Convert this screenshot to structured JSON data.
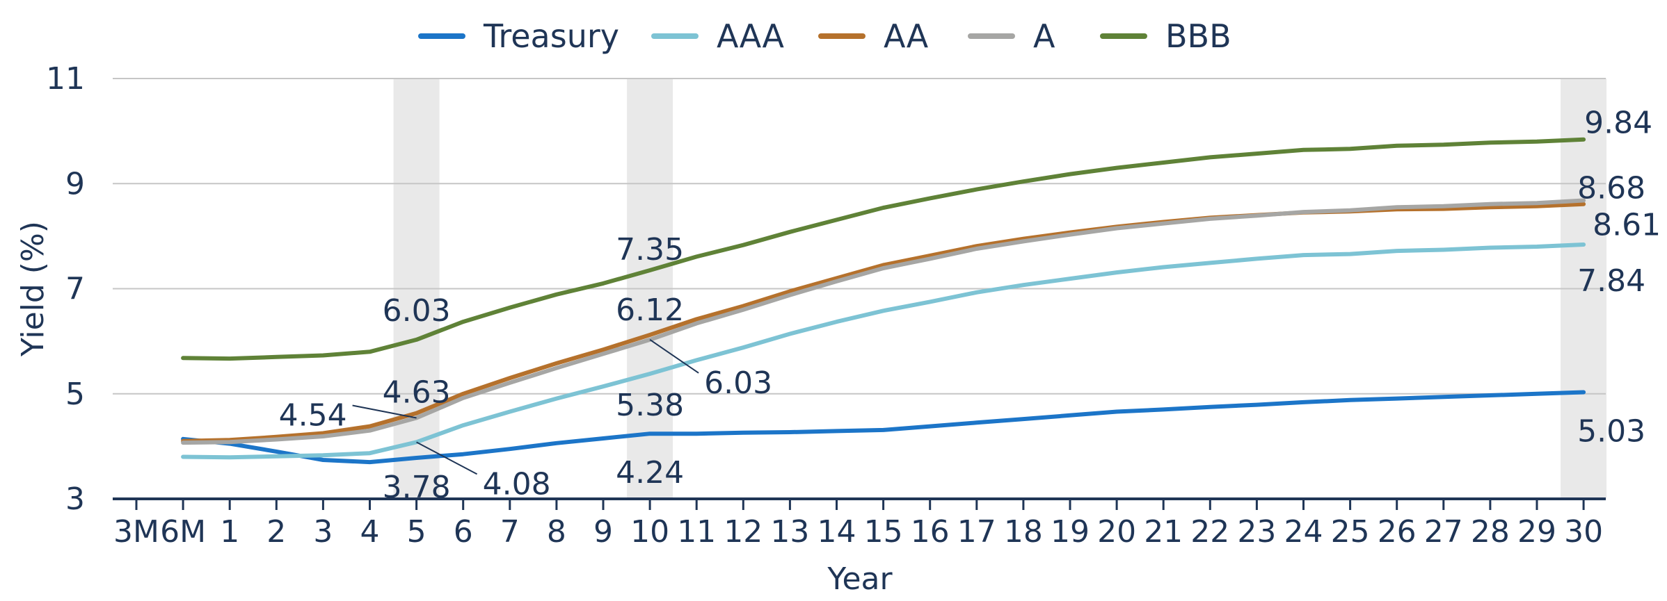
{
  "chart_data": {
    "type": "line",
    "title": "",
    "xlabel": "Year",
    "ylabel": "Yield (%)",
    "ylim": [
      3,
      11
    ],
    "yticks": [
      3,
      5,
      7,
      9,
      11
    ],
    "grid": "horizontal",
    "legend": "top",
    "categories": [
      "3M",
      "6M",
      "1",
      "2",
      "3",
      "4",
      "5",
      "6",
      "7",
      "8",
      "9",
      "10",
      "11",
      "12",
      "13",
      "14",
      "15",
      "16",
      "17",
      "18",
      "19",
      "20",
      "21",
      "22",
      "23",
      "24",
      "25",
      "26",
      "27",
      "28",
      "29",
      "30"
    ],
    "highlight_categories": [
      "5",
      "10",
      "30"
    ],
    "series": [
      {
        "name": "Treasury",
        "color": "#1c75c8",
        "values": [
          null,
          4.14,
          4.05,
          3.9,
          3.74,
          3.7,
          3.78,
          3.85,
          3.95,
          4.06,
          4.15,
          4.24,
          4.24,
          4.26,
          4.27,
          4.29,
          4.31,
          4.38,
          4.45,
          4.52,
          4.59,
          4.66,
          4.7,
          4.75,
          4.79,
          4.84,
          4.88,
          4.91,
          4.94,
          4.97,
          5.0,
          5.03
        ]
      },
      {
        "name": "AAA",
        "color": "#7dc3d4",
        "values": [
          null,
          3.8,
          3.79,
          3.81,
          3.83,
          3.87,
          4.08,
          4.4,
          4.66,
          4.91,
          5.14,
          5.38,
          5.64,
          5.88,
          6.14,
          6.37,
          6.58,
          6.75,
          6.93,
          7.07,
          7.19,
          7.31,
          7.41,
          7.49,
          7.57,
          7.64,
          7.66,
          7.72,
          7.74,
          7.78,
          7.8,
          7.84
        ]
      },
      {
        "name": "AA",
        "color": "#b5712c",
        "values": [
          null,
          4.1,
          4.12,
          4.18,
          4.25,
          4.38,
          4.63,
          5.0,
          5.3,
          5.58,
          5.84,
          6.12,
          6.42,
          6.67,
          6.95,
          7.2,
          7.45,
          7.63,
          7.81,
          7.95,
          8.07,
          8.18,
          8.27,
          8.35,
          8.4,
          8.45,
          8.47,
          8.51,
          8.52,
          8.55,
          8.57,
          8.61
        ]
      },
      {
        "name": "A",
        "color": "#a6a6a4",
        "values": [
          null,
          4.07,
          4.08,
          4.13,
          4.19,
          4.3,
          4.54,
          4.92,
          5.21,
          5.49,
          5.76,
          6.03,
          6.34,
          6.6,
          6.88,
          7.14,
          7.39,
          7.57,
          7.76,
          7.9,
          8.03,
          8.15,
          8.24,
          8.33,
          8.39,
          8.46,
          8.49,
          8.55,
          8.57,
          8.61,
          8.63,
          8.68
        ]
      },
      {
        "name": "BBB",
        "color": "#5f8237",
        "values": [
          null,
          5.68,
          5.67,
          5.7,
          5.73,
          5.8,
          6.03,
          6.37,
          6.64,
          6.89,
          7.1,
          7.35,
          7.61,
          7.83,
          8.08,
          8.31,
          8.54,
          8.72,
          8.89,
          9.04,
          9.18,
          9.3,
          9.4,
          9.5,
          9.57,
          9.64,
          9.66,
          9.72,
          9.74,
          9.78,
          9.8,
          9.84
        ]
      }
    ],
    "data_labels": [
      {
        "series": "BBB",
        "x": "5",
        "text": "6.03"
      },
      {
        "series": "AA",
        "x": "5",
        "text": "4.63"
      },
      {
        "series": "A",
        "x": "5",
        "text": "4.54"
      },
      {
        "series": "AAA",
        "x": "5",
        "text": "4.08"
      },
      {
        "series": "Treasury",
        "x": "5",
        "text": "3.78"
      },
      {
        "series": "BBB",
        "x": "10",
        "text": "7.35"
      },
      {
        "series": "AA",
        "x": "10",
        "text": "6.12"
      },
      {
        "series": "A",
        "x": "10",
        "text": "6.03"
      },
      {
        "series": "AAA",
        "x": "10",
        "text": "5.38"
      },
      {
        "series": "Treasury",
        "x": "10",
        "text": "4.24"
      },
      {
        "series": "BBB",
        "x": "30",
        "text": "9.84"
      },
      {
        "series": "A",
        "x": "30",
        "text": "8.68"
      },
      {
        "series": "AA",
        "x": "30",
        "text": "8.61"
      },
      {
        "series": "AAA",
        "x": "30",
        "text": "7.84"
      },
      {
        "series": "Treasury",
        "x": "30",
        "text": "5.03"
      }
    ]
  }
}
